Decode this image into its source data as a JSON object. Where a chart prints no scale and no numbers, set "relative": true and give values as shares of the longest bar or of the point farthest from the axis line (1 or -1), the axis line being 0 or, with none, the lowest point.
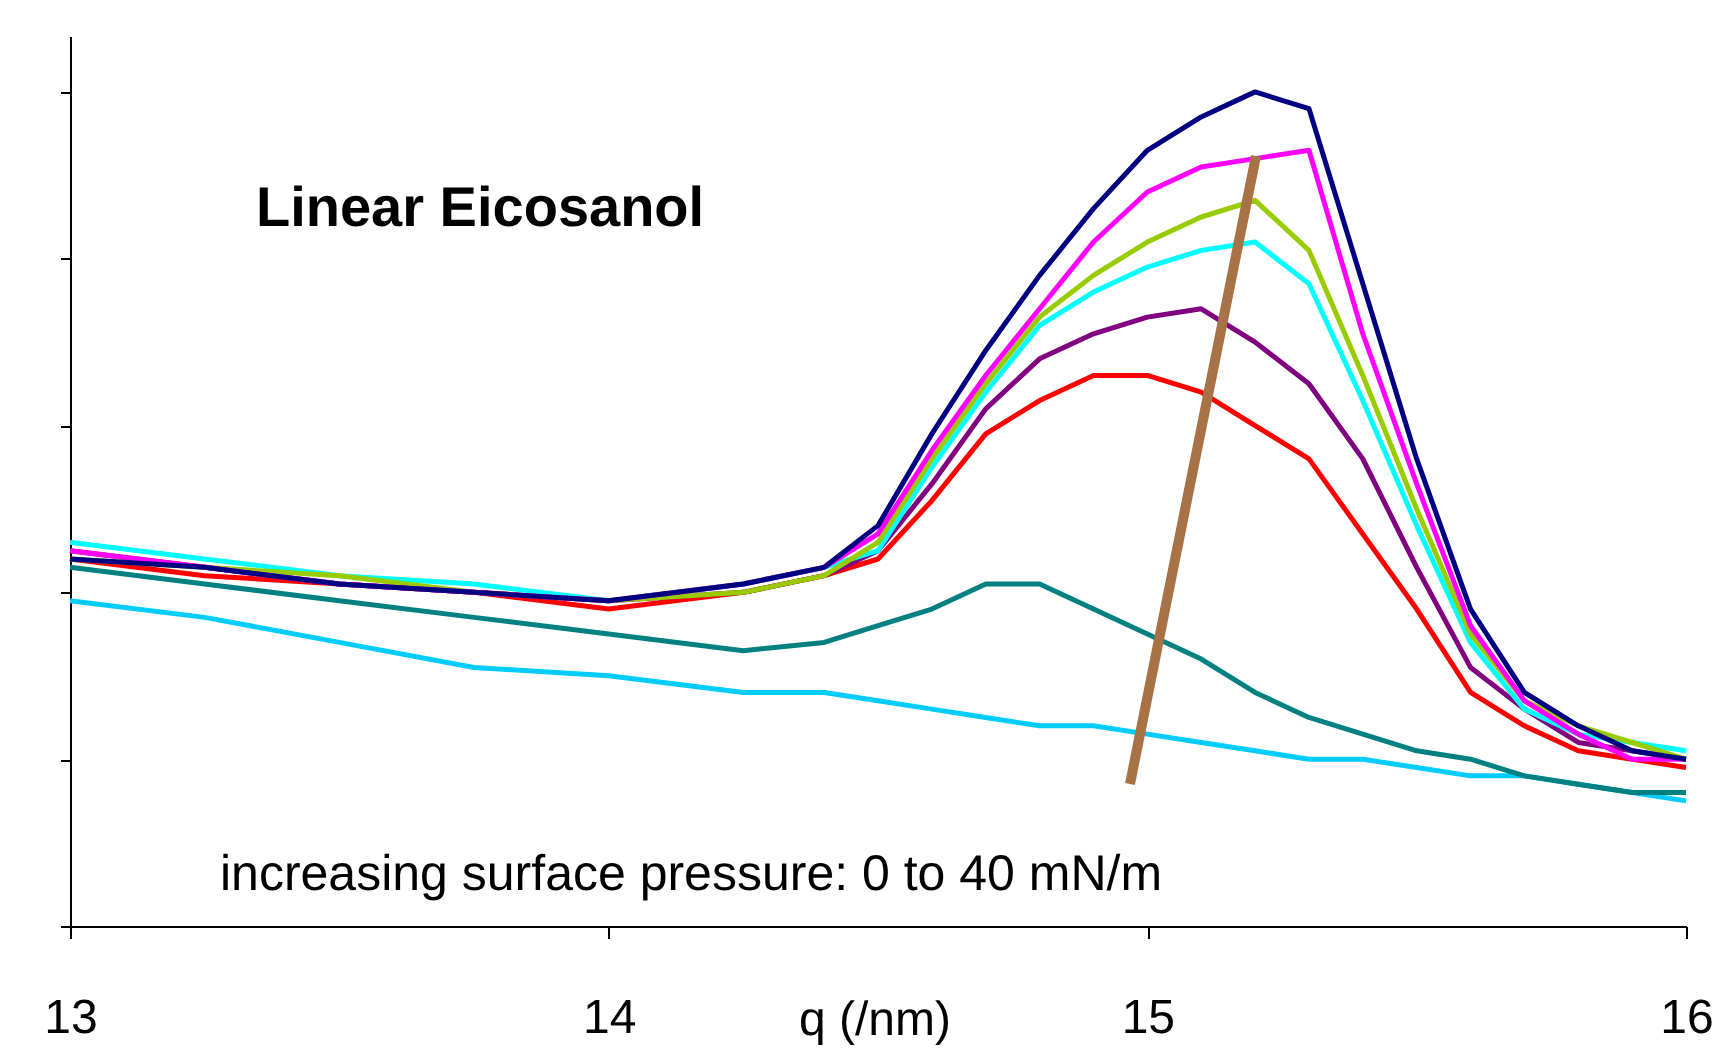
{
  "chart_data": {
    "type": "line",
    "relative": true,
    "xlabel": "q (/nm)",
    "xlim": [
      13,
      16
    ],
    "xticks": [
      13,
      14,
      15,
      16
    ],
    "tick_labels": "x",
    "grid": false,
    "annotations": [
      "Linear Eicosanol",
      "increasing surface pressure: 0 to 40 mN/m"
    ],
    "x": [
      13,
      13.25,
      13.5,
      13.75,
      14,
      14.25,
      14.4,
      14.5,
      14.6,
      14.7,
      14.8,
      14.9,
      15,
      15.1,
      15.2,
      15.3,
      15.4,
      15.5,
      15.6,
      15.7,
      15.8,
      15.9,
      16
    ],
    "series": [
      {
        "color": "#00ccff",
        "values": [
          0.39,
          0.37,
          0.34,
          0.31,
          0.3,
          0.28,
          0.28,
          0.27,
          0.26,
          0.25,
          0.24,
          0.24,
          0.23,
          0.22,
          0.21,
          0.2,
          0.2,
          0.19,
          0.18,
          0.18,
          0.17,
          0.16,
          0.15
        ]
      },
      {
        "color": "#008080",
        "values": [
          0.43,
          0.41,
          0.39,
          0.37,
          0.35,
          0.33,
          0.34,
          0.36,
          0.38,
          0.41,
          0.41,
          0.38,
          0.35,
          0.32,
          0.28,
          0.25,
          0.23,
          0.21,
          0.2,
          0.18,
          0.17,
          0.16,
          0.16
        ]
      },
      {
        "color": "#ff0000",
        "values": [
          0.44,
          0.42,
          0.41,
          0.4,
          0.38,
          0.4,
          0.42,
          0.44,
          0.51,
          0.59,
          0.63,
          0.66,
          0.66,
          0.64,
          0.6,
          0.56,
          0.47,
          0.38,
          0.28,
          0.24,
          0.21,
          0.2,
          0.19
        ]
      },
      {
        "color": "#800080",
        "values": [
          0.45,
          0.43,
          0.41,
          0.4,
          0.39,
          0.4,
          0.42,
          0.45,
          0.53,
          0.62,
          0.68,
          0.71,
          0.73,
          0.74,
          0.7,
          0.65,
          0.56,
          0.43,
          0.31,
          0.26,
          0.22,
          0.21,
          0.2
        ]
      },
      {
        "color": "#00ffff",
        "values": [
          0.46,
          0.44,
          0.42,
          0.41,
          0.39,
          0.41,
          0.43,
          0.45,
          0.55,
          0.64,
          0.72,
          0.76,
          0.79,
          0.81,
          0.82,
          0.77,
          0.63,
          0.48,
          0.34,
          0.26,
          0.23,
          0.22,
          0.21
        ]
      },
      {
        "color": "#99cc00",
        "values": [
          0.44,
          0.43,
          0.42,
          0.4,
          0.39,
          0.4,
          0.42,
          0.46,
          0.56,
          0.65,
          0.73,
          0.78,
          0.82,
          0.85,
          0.87,
          0.81,
          0.66,
          0.5,
          0.35,
          0.27,
          0.24,
          0.22,
          0.2
        ]
      },
      {
        "color": "#ff00ff",
        "values": [
          0.45,
          0.43,
          0.41,
          0.4,
          0.39,
          0.41,
          0.43,
          0.47,
          0.57,
          0.66,
          0.74,
          0.82,
          0.88,
          0.91,
          0.92,
          0.93,
          0.71,
          0.53,
          0.36,
          0.27,
          0.23,
          0.2,
          0.2
        ]
      },
      {
        "color": "#000080",
        "values": [
          0.44,
          0.43,
          0.41,
          0.4,
          0.39,
          0.41,
          0.43,
          0.48,
          0.59,
          0.69,
          0.78,
          0.86,
          0.93,
          0.97,
          1.0,
          0.98,
          0.77,
          0.56,
          0.38,
          0.28,
          0.24,
          0.21,
          0.2
        ]
      }
    ]
  }
}
